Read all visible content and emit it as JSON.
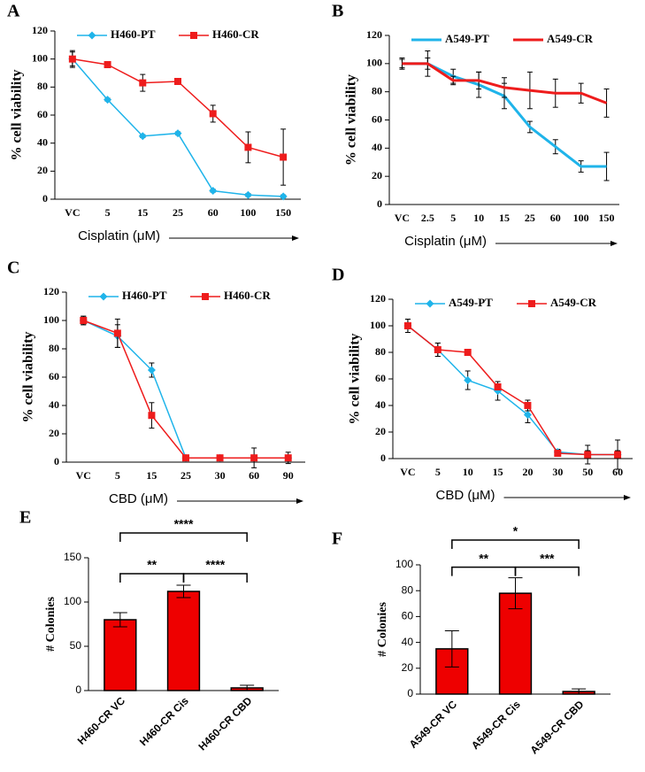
{
  "chart_data": [
    {
      "type": "line",
      "panel": "A",
      "categories": [
        "VC",
        "5",
        "15",
        "25",
        "60",
        "100",
        "150"
      ],
      "xlabel": "Cisplatin (μM)",
      "ylabel": "% cell viability",
      "ylim": [
        0,
        120
      ],
      "yticks": [
        0,
        20,
        40,
        60,
        80,
        100,
        120
      ],
      "series": [
        {
          "name": "H460-PT",
          "color": "#1fb4ea",
          "marker": "diamond",
          "values": [
            100,
            71,
            45,
            47,
            6,
            3,
            2
          ],
          "errors": [
            5,
            1,
            1,
            1,
            1,
            1,
            1
          ]
        },
        {
          "name": "H460-CR",
          "color": "#ee1c1c",
          "marker": "square",
          "values": [
            100,
            96,
            83,
            84,
            61,
            37,
            30
          ],
          "errors": [
            6,
            1,
            6,
            1,
            6,
            11,
            20
          ]
        }
      ]
    },
    {
      "type": "line",
      "panel": "B",
      "categories": [
        "VC",
        "2.5",
        "5",
        "10",
        "15",
        "25",
        "60",
        "100",
        "150"
      ],
      "xlabel": "Cisplatin (μM)",
      "ylabel": "% cell viability",
      "ylim": [
        0,
        120
      ],
      "yticks": [
        0,
        20,
        40,
        60,
        80,
        100,
        120
      ],
      "series": [
        {
          "name": "A549-PT",
          "color": "#1fb4ea",
          "marker": "none",
          "values": [
            100,
            100,
            91,
            85,
            77,
            55,
            41,
            27,
            27
          ],
          "errors": [
            4,
            4,
            5,
            9,
            9,
            4,
            5,
            4,
            10
          ]
        },
        {
          "name": "A549-CR",
          "color": "#ee1c1c",
          "marker": "none",
          "values": [
            100,
            100,
            88,
            88,
            83,
            81,
            79,
            79,
            72
          ],
          "errors": [
            3,
            9,
            3,
            6,
            7,
            13,
            10,
            7,
            10
          ]
        }
      ]
    },
    {
      "type": "line",
      "panel": "C",
      "categories": [
        "VC",
        "5",
        "15",
        "25",
        "30",
        "60",
        "90"
      ],
      "xlabel": "CBD (μM)",
      "ylabel": "% cell viability",
      "ylim": [
        0,
        120
      ],
      "yticks": [
        0,
        20,
        40,
        60,
        80,
        100,
        120
      ],
      "series": [
        {
          "name": "H460-PT",
          "color": "#1fb4ea",
          "marker": "diamond",
          "values": [
            100,
            89,
            65,
            3,
            3,
            3,
            3
          ],
          "errors": [
            3,
            8,
            5,
            1,
            1,
            1,
            1
          ]
        },
        {
          "name": "H460-CR",
          "color": "#ee1c1c",
          "marker": "square",
          "values": [
            100,
            91,
            33,
            3,
            3,
            3,
            3
          ],
          "errors": [
            3,
            10,
            9,
            2,
            2,
            7,
            4
          ]
        }
      ]
    },
    {
      "type": "line",
      "panel": "D",
      "categories": [
        "VC",
        "5",
        "10",
        "15",
        "20",
        "30",
        "50",
        "60"
      ],
      "xlabel": "CBD (μM)",
      "ylabel": "% cell viability",
      "ylim": [
        0,
        120
      ],
      "yticks": [
        0,
        20,
        40,
        60,
        80,
        100,
        120
      ],
      "series": [
        {
          "name": "A549-PT",
          "color": "#1fb4ea",
          "marker": "diamond",
          "values": [
            100,
            82,
            59,
            51,
            33,
            5,
            3,
            3
          ],
          "errors": [
            5,
            5,
            7,
            7,
            6,
            2,
            3,
            3
          ]
        },
        {
          "name": "A549-CR",
          "color": "#ee1c1c",
          "marker": "square",
          "values": [
            100,
            82,
            80,
            54,
            40,
            4,
            3,
            3
          ],
          "errors": [
            5,
            5,
            1,
            2,
            4,
            2,
            7,
            11
          ]
        }
      ]
    },
    {
      "type": "bar",
      "panel": "E",
      "categories": [
        "H460-CR VC",
        "H460-CR Cis",
        "H460-CR CBD"
      ],
      "ylabel": "# Colonies",
      "values": [
        80,
        112,
        3
      ],
      "errors": [
        8,
        7,
        3
      ],
      "color": "#ee0000",
      "ylim": [
        0,
        150
      ],
      "yticks": [
        0,
        50,
        100,
        150
      ],
      "comparisons": [
        {
          "label": "****",
          "between": [
            0,
            2
          ]
        },
        {
          "label": "**",
          "between": [
            0,
            1
          ]
        },
        {
          "label": "****",
          "between": [
            1,
            2
          ]
        }
      ]
    },
    {
      "type": "bar",
      "panel": "F",
      "categories": [
        "A549-CR VC",
        "A549-CR Cis",
        "A549-CR CBD"
      ],
      "ylabel": "# Colonies",
      "values": [
        35,
        78,
        2
      ],
      "errors": [
        14,
        12,
        2
      ],
      "color": "#ee0000",
      "ylim": [
        0,
        100
      ],
      "yticks": [
        0,
        20,
        40,
        60,
        80,
        100
      ],
      "comparisons": [
        {
          "label": "*",
          "between": [
            0,
            2
          ]
        },
        {
          "label": "**",
          "between": [
            0,
            1
          ]
        },
        {
          "label": "***",
          "between": [
            1,
            2
          ]
        }
      ]
    }
  ]
}
